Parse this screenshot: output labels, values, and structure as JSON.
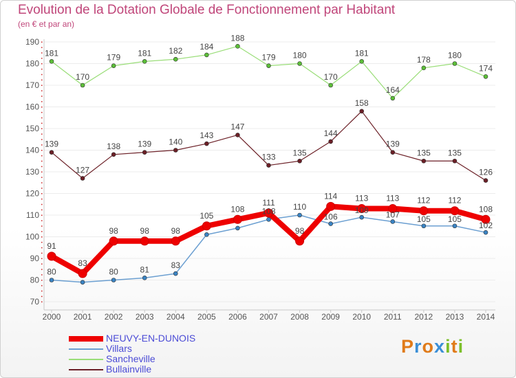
{
  "header": {
    "title": "Evolution de la Dotation Globale de Fonctionnement par Habitant",
    "subtitle": "(en € et par an)"
  },
  "colors": {
    "title": "#c0467a",
    "axis_text": "#555555",
    "grid": "#ececec",
    "legend_text": "#4b4bd6"
  },
  "chart_data": {
    "type": "line",
    "title": "Evolution de la Dotation Globale de Fonctionnement par Habitant",
    "subtitle": "(en € et par an)",
    "xlabel": "",
    "ylabel": "",
    "x": [
      "2000",
      "2001",
      "2002",
      "2003",
      "2004",
      "2005",
      "2006",
      "2007",
      "2008",
      "2009",
      "2010",
      "2011",
      "2012",
      "2013",
      "2014"
    ],
    "ylim": [
      70,
      190
    ],
    "yticks": [
      70,
      80,
      90,
      100,
      110,
      120,
      130,
      140,
      150,
      160,
      170,
      180,
      190
    ],
    "grid": true,
    "legend_position": "bottom-left",
    "series": [
      {
        "name": "Villars",
        "color": "#6b9fd1",
        "marker": "#3a84c4",
        "width": 1.5,
        "values": [
          80,
          79,
          80,
          81,
          83,
          101,
          104,
          108,
          110,
          106,
          109,
          107,
          105,
          105,
          102
        ],
        "labels": [
          "80",
          "",
          "80",
          "81",
          "83",
          "",
          "",
          "108",
          "110",
          "106",
          "109",
          "107",
          "105",
          "105",
          "102"
        ]
      },
      {
        "name": "Sancheville",
        "color": "#99dd77",
        "marker": "#5cbf38",
        "width": 1.2,
        "values": [
          181,
          170,
          179,
          181,
          182,
          184,
          188,
          179,
          180,
          170,
          181,
          164,
          178,
          180,
          174
        ],
        "labels": [
          "181",
          "170",
          "179",
          "181",
          "182",
          "184",
          "188",
          "179",
          "180",
          "170",
          "181",
          "164",
          "178",
          "180",
          "174"
        ]
      },
      {
        "name": "Bullainville",
        "color": "#6b1f26",
        "marker": "#6b1f26",
        "width": 1.2,
        "values": [
          139,
          127,
          138,
          139,
          140,
          143,
          147,
          133,
          135,
          144,
          158,
          139,
          135,
          135,
          126
        ],
        "labels": [
          "139",
          "127",
          "138",
          "139",
          "140",
          "143",
          "147",
          "133",
          "135",
          "144",
          "158",
          "139",
          "135",
          "135",
          "126"
        ]
      },
      {
        "name": "NEUVY-EN-DUNOIS",
        "color": "#ee0000",
        "marker": "#ee0000",
        "width": 8,
        "values": [
          91,
          83,
          98,
          98,
          98,
          105,
          108,
          111,
          98,
          114,
          113,
          113,
          112,
          112,
          108
        ],
        "labels": [
          "91",
          "83",
          "98",
          "98",
          "98",
          "105",
          "108",
          "111",
          "98",
          "114",
          "113",
          "113",
          "112",
          "112",
          "108"
        ]
      }
    ]
  },
  "legend": {
    "items": [
      {
        "name": "NEUVY-EN-DUNOIS",
        "color": "#ee0000",
        "thickness": 8
      },
      {
        "name": "Villars",
        "color": "#6b9fd1",
        "thickness": 2
      },
      {
        "name": "Sancheville",
        "color": "#99dd77",
        "thickness": 2
      },
      {
        "name": "Bullainville",
        "color": "#6b1f26",
        "thickness": 2
      }
    ]
  },
  "logo": {
    "letters": [
      "P",
      "r",
      "o",
      "x",
      "i",
      "t",
      "i"
    ],
    "colors": [
      "#e07b1a",
      "#3b8fd6",
      "#e07b1a",
      "#3b8fd6",
      "#7cbf2a",
      "#e07b1a",
      "#7cbf2a"
    ]
  }
}
